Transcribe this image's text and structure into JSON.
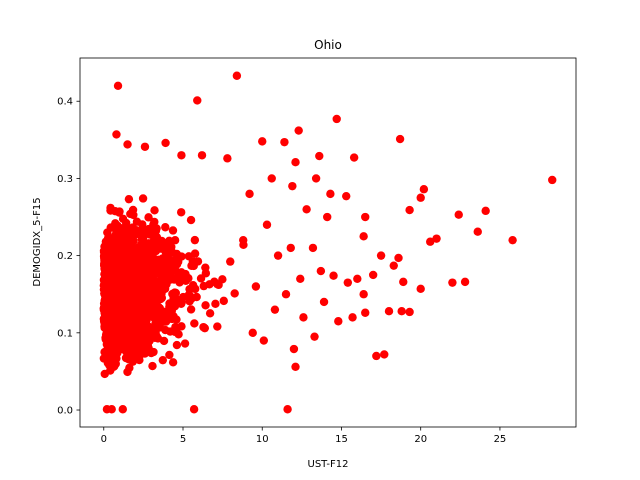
{
  "chart_data": {
    "type": "scatter",
    "title": "Ohio",
    "xlabel": "UST-F12",
    "ylabel": "DEMOGIDX_5-F15",
    "xlim": [
      -1.5,
      29.8
    ],
    "ylim": [
      -0.022,
      0.456
    ],
    "x_ticks": [
      0,
      5,
      10,
      15,
      20,
      25
    ],
    "x_tick_labels": [
      "0",
      "5",
      "10",
      "15",
      "20",
      "25"
    ],
    "y_ticks": [
      0.0,
      0.1,
      0.2,
      0.3,
      0.4
    ],
    "y_tick_labels": [
      "0.0",
      "0.1",
      "0.2",
      "0.3",
      "0.4"
    ],
    "grid": false,
    "marker_color": "#ff0000",
    "series": [
      {
        "values": [
          [
            8.4,
            0.433
          ],
          [
            0.9,
            0.42
          ],
          [
            5.9,
            0.401
          ],
          [
            14.7,
            0.377
          ],
          [
            12.3,
            0.362
          ],
          [
            0.8,
            0.357
          ],
          [
            18.7,
            0.351
          ],
          [
            10.0,
            0.348
          ],
          [
            11.4,
            0.347
          ],
          [
            3.9,
            0.346
          ],
          [
            1.5,
            0.344
          ],
          [
            2.6,
            0.341
          ],
          [
            7.8,
            0.326
          ],
          [
            13.6,
            0.329
          ],
          [
            15.8,
            0.327
          ],
          [
            12.1,
            0.321
          ],
          [
            6.2,
            0.33
          ],
          [
            4.9,
            0.33
          ],
          [
            28.3,
            0.298
          ],
          [
            20.2,
            0.286
          ],
          [
            20.0,
            0.275
          ],
          [
            14.3,
            0.28
          ],
          [
            15.3,
            0.277
          ],
          [
            16.5,
            0.25
          ],
          [
            19.3,
            0.259
          ],
          [
            22.4,
            0.253
          ],
          [
            24.1,
            0.258
          ],
          [
            23.6,
            0.231
          ],
          [
            25.8,
            0.22
          ],
          [
            20.6,
            0.218
          ],
          [
            21.0,
            0.222
          ],
          [
            16.4,
            0.225
          ],
          [
            17.5,
            0.2
          ],
          [
            18.6,
            0.197
          ],
          [
            16.0,
            0.17
          ],
          [
            17.0,
            0.175
          ],
          [
            18.3,
            0.187
          ],
          [
            13.7,
            0.18
          ],
          [
            14.5,
            0.174
          ],
          [
            12.4,
            0.17
          ],
          [
            15.4,
            0.165
          ],
          [
            18.9,
            0.166
          ],
          [
            20.0,
            0.157
          ],
          [
            22.0,
            0.165
          ],
          [
            22.8,
            0.166
          ],
          [
            16.4,
            0.15
          ],
          [
            15.7,
            0.12
          ],
          [
            16.5,
            0.126
          ],
          [
            18.0,
            0.128
          ],
          [
            18.8,
            0.128
          ],
          [
            19.3,
            0.127
          ],
          [
            14.8,
            0.115
          ],
          [
            13.3,
            0.095
          ],
          [
            12.0,
            0.079
          ],
          [
            12.1,
            0.056
          ],
          [
            17.2,
            0.07
          ],
          [
            17.7,
            0.072
          ],
          [
            11.6,
            0.001
          ],
          [
            5.7,
            0.001
          ],
          [
            1.2,
            0.001
          ],
          [
            0.2,
            0.001
          ],
          [
            0.5,
            0.001
          ],
          [
            10.3,
            0.24
          ],
          [
            11.0,
            0.2
          ],
          [
            11.8,
            0.21
          ],
          [
            12.8,
            0.26
          ],
          [
            13.2,
            0.21
          ],
          [
            14.1,
            0.25
          ],
          [
            9.6,
            0.16
          ],
          [
            10.8,
            0.13
          ],
          [
            11.5,
            0.15
          ],
          [
            12.6,
            0.12
          ],
          [
            13.9,
            0.14
          ],
          [
            9.2,
            0.28
          ],
          [
            10.6,
            0.3
          ],
          [
            11.9,
            0.29
          ],
          [
            13.4,
            0.3
          ],
          [
            8.8,
            0.22
          ],
          [
            9.4,
            0.1
          ],
          [
            10.1,
            0.09
          ]
        ]
      }
    ]
  }
}
